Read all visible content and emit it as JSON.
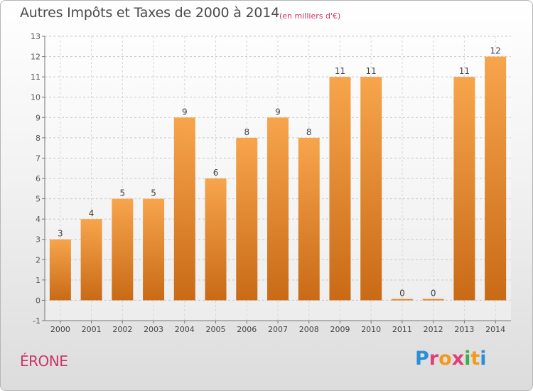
{
  "header": {
    "title": "Autres Impôts et Taxes de 2000 à 2014",
    "subtitle": "(en milliers d'€)"
  },
  "footer": {
    "place": "ÉRONE",
    "logo_text": "Proxiti"
  },
  "colors": {
    "bar_top": "#f7a54c",
    "bar_bottom": "#c96a16",
    "title": "#4a4a4a",
    "accent": "#cc3366"
  },
  "chart_data": {
    "type": "bar",
    "categories": [
      "2000",
      "2001",
      "2002",
      "2003",
      "2004",
      "2005",
      "2006",
      "2007",
      "2008",
      "2009",
      "2010",
      "2011",
      "2012",
      "2013",
      "2014"
    ],
    "values": [
      3,
      4,
      5,
      5,
      9,
      6,
      8,
      9,
      8,
      11,
      11,
      0,
      0,
      11,
      12
    ],
    "ylim": [
      -1,
      13
    ],
    "yticks": [
      -1,
      0,
      1,
      2,
      3,
      4,
      5,
      6,
      7,
      8,
      9,
      10,
      11,
      12,
      13
    ],
    "grid": true
  }
}
